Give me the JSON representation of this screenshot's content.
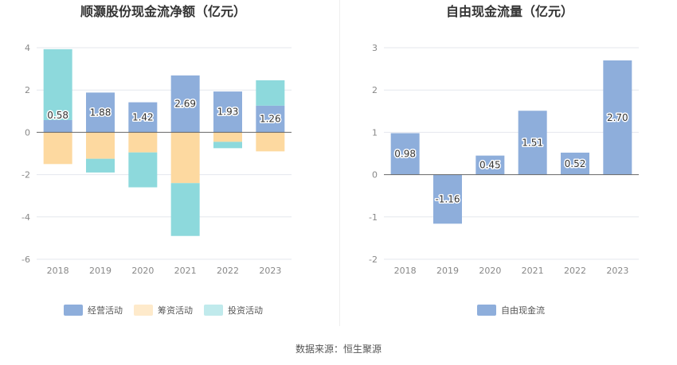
{
  "chart_data": [
    {
      "type": "bar",
      "stacked": true,
      "title": "顺灏股份现金流净额（亿元）",
      "categories": [
        "2018",
        "2019",
        "2020",
        "2021",
        "2022",
        "2023"
      ],
      "series": [
        {
          "name": "经营活动",
          "values": [
            0.58,
            1.88,
            1.42,
            2.69,
            1.93,
            1.26
          ],
          "color": "#8eaedb",
          "labels": [
            "0.58",
            "1.88",
            "1.42",
            "2.69",
            "1.93",
            "1.26"
          ]
        },
        {
          "name": "筹资活动",
          "values": [
            -1.5,
            -1.25,
            -0.95,
            -2.4,
            -0.45,
            -0.9
          ],
          "color": "#fdd9a0"
        },
        {
          "name": "投资活动",
          "values": [
            3.35,
            -0.65,
            -1.65,
            -2.5,
            -0.3,
            1.2
          ],
          "color": "#8dd9dc"
        }
      ],
      "yticks": [
        "4",
        "2",
        "0",
        "-2",
        "-4",
        "-6"
      ],
      "ylim": [
        -6,
        4
      ],
      "legend_position": "bottom"
    },
    {
      "type": "bar",
      "title": "自由现金流量（亿元）",
      "categories": [
        "2018",
        "2019",
        "2020",
        "2021",
        "2022",
        "2023"
      ],
      "series": [
        {
          "name": "自由现金流",
          "values": [
            0.98,
            -1.16,
            0.45,
            1.51,
            0.52,
            2.7
          ],
          "color": "#8eaedb",
          "labels": [
            "0.98",
            "-1.16",
            "0.45",
            "1.51",
            "0.52",
            "2.70"
          ]
        }
      ],
      "yticks": [
        "3",
        "2",
        "1",
        "0",
        "-1",
        "-2"
      ],
      "ylim": [
        -2,
        3
      ],
      "legend_position": "bottom"
    }
  ],
  "source": "数据来源：恒生聚源"
}
